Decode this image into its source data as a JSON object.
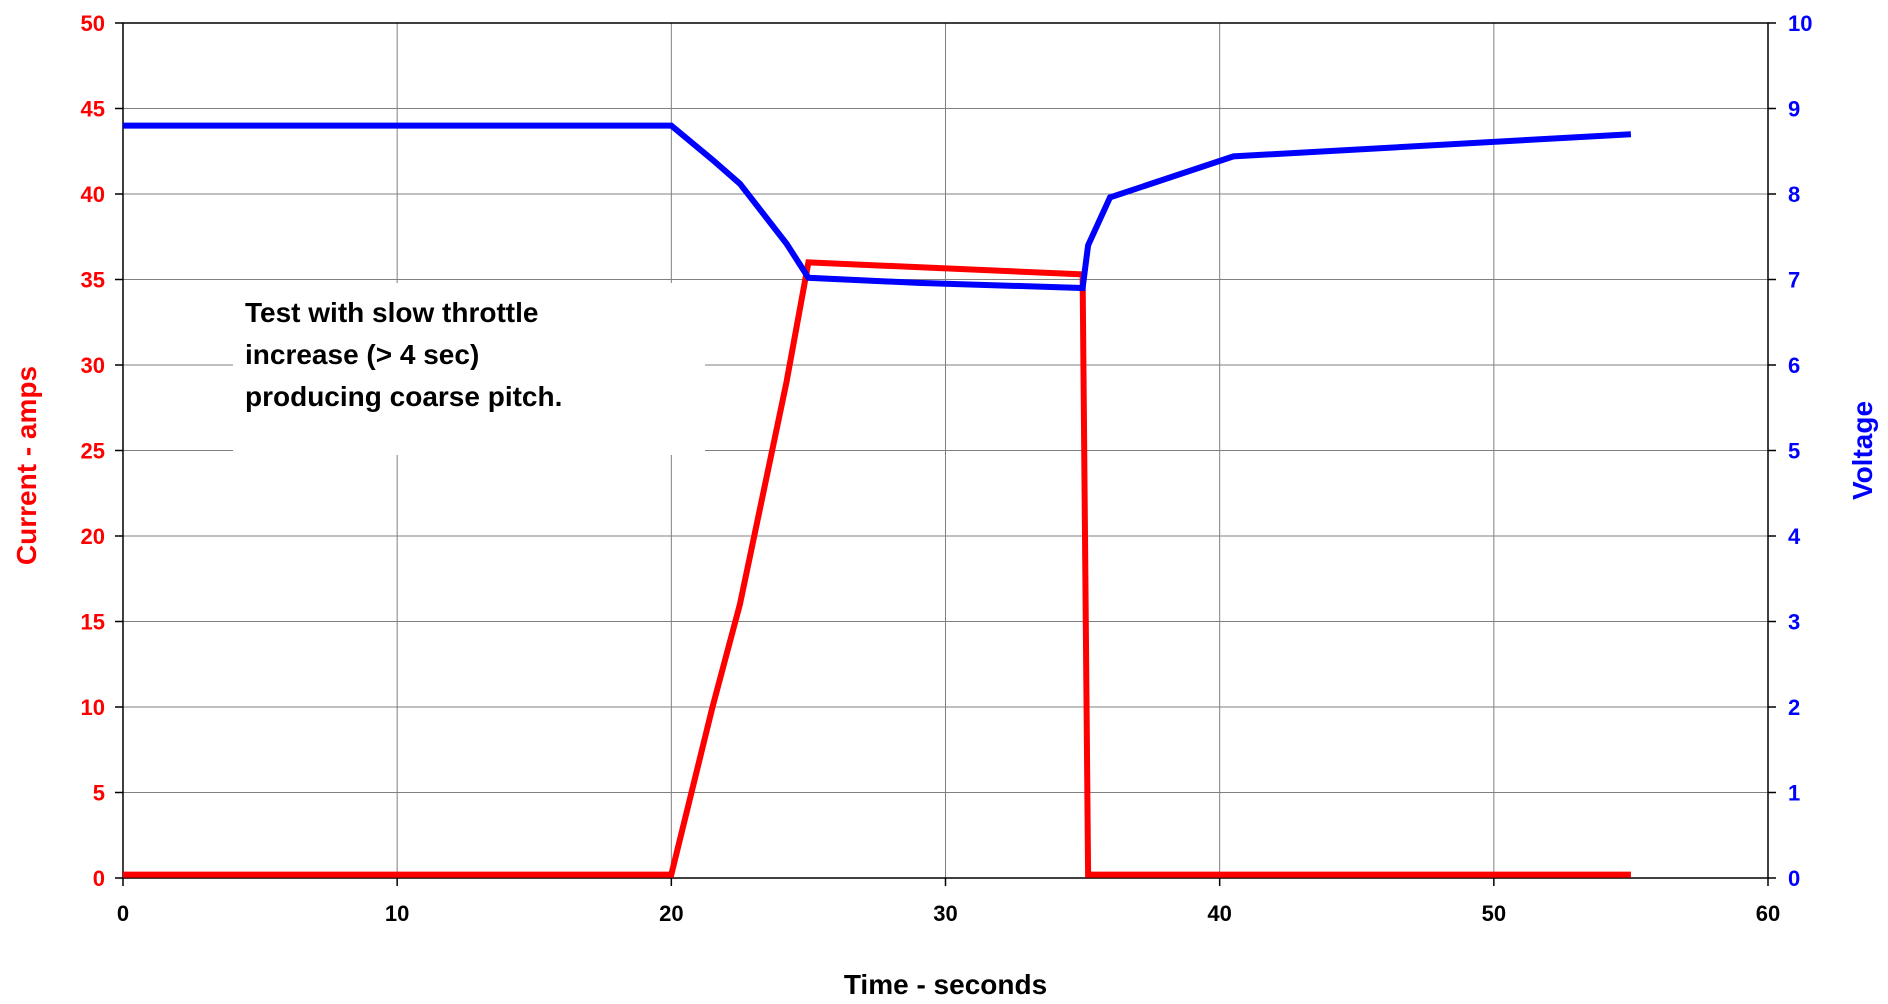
{
  "chart_data": {
    "type": "line",
    "title": "",
    "xlabel": "Time - seconds",
    "ylabel_left": "Current - amps",
    "ylabel_right": "Voltage",
    "xlim": [
      0,
      60
    ],
    "ylim_left": [
      0,
      50
    ],
    "ylim_right": [
      0,
      10
    ],
    "x_ticks": [
      0,
      10,
      20,
      30,
      40,
      50,
      60
    ],
    "y_left_ticks": [
      0,
      5,
      10,
      15,
      20,
      25,
      30,
      35,
      40,
      45,
      50
    ],
    "y_right_ticks": [
      0,
      1,
      2,
      3,
      4,
      5,
      6,
      7,
      8,
      9,
      10
    ],
    "grid": true,
    "legend": "none",
    "annotation": [
      "Test with slow throttle",
      "increase (> 4 sec)",
      "producing coarse pitch."
    ],
    "colors": {
      "current": "#ff0000",
      "voltage": "#0000ff",
      "grid": "#808080"
    },
    "series": [
      {
        "axis": "left",
        "color": "#ff0000",
        "points": [
          [
            0,
            0.2
          ],
          [
            20,
            0.2
          ],
          [
            21.5,
            10
          ],
          [
            22.5,
            16
          ],
          [
            24.2,
            29
          ],
          [
            25,
            36
          ],
          [
            35,
            35.3
          ],
          [
            35.2,
            0.2
          ],
          [
            55,
            0.2
          ]
        ]
      },
      {
        "axis": "right",
        "color": "#0000ff",
        "points": [
          [
            0,
            8.8
          ],
          [
            20,
            8.8
          ],
          [
            21.5,
            8.4
          ],
          [
            22.5,
            8.12
          ],
          [
            24.2,
            7.42
          ],
          [
            25,
            7.02
          ],
          [
            29,
            6.96
          ],
          [
            35,
            6.9
          ],
          [
            35.2,
            7.4
          ],
          [
            36,
            7.96
          ],
          [
            40.5,
            8.44
          ],
          [
            55,
            8.7
          ]
        ]
      }
    ]
  }
}
